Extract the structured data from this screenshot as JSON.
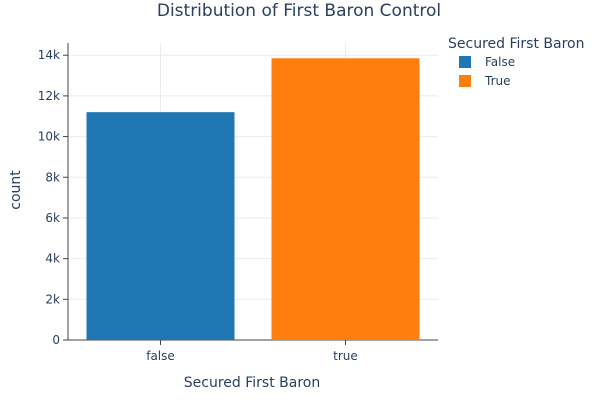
{
  "chart_data": {
    "type": "bar",
    "title": "Distribution of First Baron Control",
    "xlabel": "Secured First Baron",
    "ylabel": "count",
    "categories": [
      "false",
      "true"
    ],
    "values": [
      11200,
      13850
    ],
    "colors": [
      "#1f77b4",
      "#ff7f0e"
    ],
    "ylim": [
      0,
      14600
    ],
    "yticks": [
      0,
      2000,
      4000,
      6000,
      8000,
      10000,
      12000,
      14000
    ],
    "ytick_labels": [
      "0",
      "2k",
      "4k",
      "6k",
      "8k",
      "10k",
      "12k",
      "14k"
    ],
    "grid": true,
    "legend": {
      "title": "Secured First Baron",
      "position": "top-right",
      "items": [
        {
          "label": "False",
          "color": "#1f77b4"
        },
        {
          "label": "True",
          "color": "#ff7f0e"
        }
      ]
    }
  }
}
